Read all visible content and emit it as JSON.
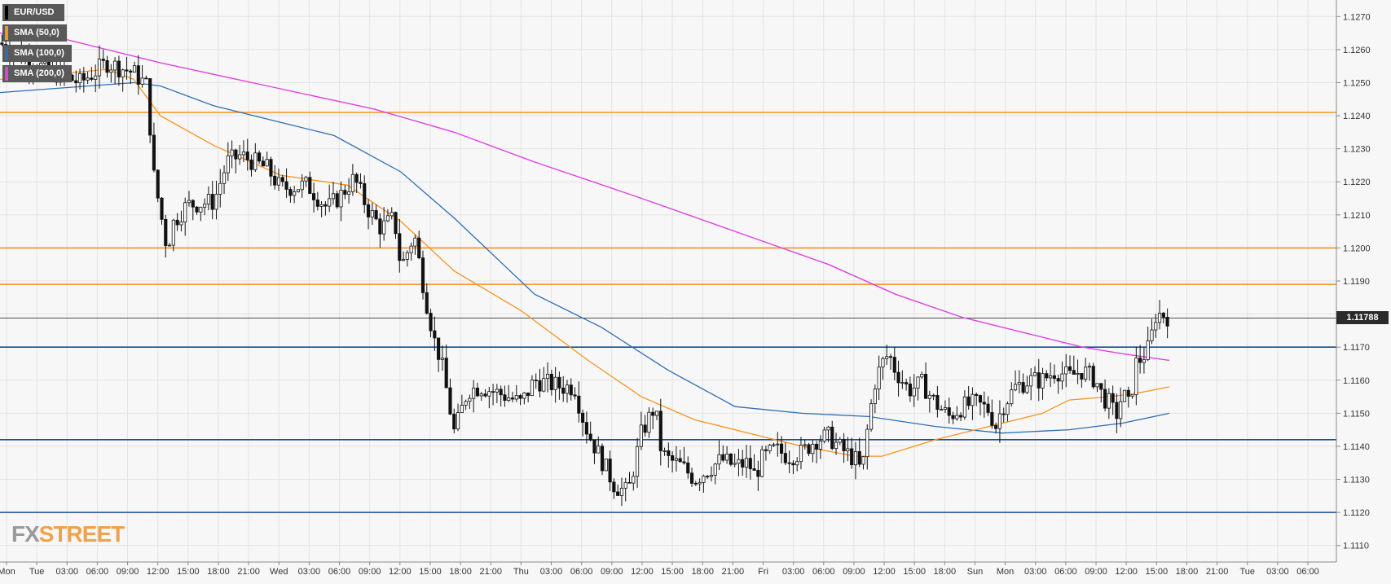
{
  "chart_data": {
    "type": "candlestick",
    "symbol": "EUR/USD",
    "ylim": [
      1.1105,
      1.1275
    ],
    "y_ticks": [
      "1.1270",
      "1.1260",
      "1.1250",
      "1.1240",
      "1.1230",
      "1.1220",
      "1.1210",
      "1.1200",
      "1.1190",
      "1.1180",
      "1.1170",
      "1.1160",
      "1.1150",
      "1.1140",
      "1.1130",
      "1.1120",
      "1.1110"
    ],
    "x_ticks": [
      "Mon",
      "Tue",
      "03:00",
      "06:00",
      "09:00",
      "12:00",
      "15:00",
      "18:00",
      "21:00",
      "Wed",
      "03:00",
      "06:00",
      "09:00",
      "12:00",
      "15:00",
      "18:00",
      "21:00",
      "Thu",
      "03:00",
      "06:00",
      "09:00",
      "12:00",
      "15:00",
      "18:00",
      "21:00",
      "Fri",
      "03:00",
      "06:00",
      "09:00",
      "12:00",
      "15:00",
      "18:00",
      "Sun",
      "Mon",
      "03:00",
      "06:00",
      "09:00",
      "12:00",
      "15:00",
      "18:00",
      "21:00",
      "Tue",
      "03:00",
      "06:00"
    ],
    "current_price": "1.11788",
    "legend": [
      {
        "label": "EUR/USD",
        "color": "#000000"
      },
      {
        "label": "SMA (50,0)",
        "color": "#f7931e"
      },
      {
        "label": "SMA (100,0)",
        "color": "#2e6db4"
      },
      {
        "label": "SMA (200,0)",
        "color": "#e040e0"
      }
    ],
    "horizontal_levels": [
      {
        "price": 1.1241,
        "color": "#f7931e"
      },
      {
        "price": 1.12,
        "color": "#f7931e"
      },
      {
        "price": 1.1189,
        "color": "#f7931e"
      },
      {
        "price": 1.117,
        "color": "#1a4a9c"
      },
      {
        "price": 1.1142,
        "color": "#1a4a9c"
      },
      {
        "price": 1.112,
        "color": "#1a4a9c"
      }
    ],
    "sma_50": [
      [
        0,
        1.1251
      ],
      [
        0.08,
        1.1254
      ],
      [
        0.1,
        1.1251
      ],
      [
        0.12,
        1.124
      ],
      [
        0.16,
        1.1231
      ],
      [
        0.21,
        1.1222
      ],
      [
        0.26,
        1.1219
      ],
      [
        0.3,
        1.1208
      ],
      [
        0.34,
        1.1193
      ],
      [
        0.39,
        1.1181
      ],
      [
        0.44,
        1.1166
      ],
      [
        0.48,
        1.1155
      ],
      [
        0.52,
        1.1148
      ],
      [
        0.56,
        1.1144
      ],
      [
        0.6,
        1.114
      ],
      [
        0.64,
        1.1137
      ],
      [
        0.66,
        1.1137
      ],
      [
        0.7,
        1.1142
      ],
      [
        0.74,
        1.1146
      ],
      [
        0.78,
        1.115
      ],
      [
        0.8,
        1.1154
      ],
      [
        0.83,
        1.1155
      ],
      [
        0.85,
        1.1156
      ],
      [
        0.875,
        1.1158
      ]
    ],
    "sma_100": [
      [
        0,
        1.1247
      ],
      [
        0.1,
        1.125
      ],
      [
        0.12,
        1.1249
      ],
      [
        0.16,
        1.1243
      ],
      [
        0.21,
        1.1238
      ],
      [
        0.25,
        1.1234
      ],
      [
        0.3,
        1.1223
      ],
      [
        0.34,
        1.1209
      ],
      [
        0.4,
        1.1186
      ],
      [
        0.45,
        1.1176
      ],
      [
        0.5,
        1.1163
      ],
      [
        0.55,
        1.1152
      ],
      [
        0.6,
        1.115
      ],
      [
        0.65,
        1.1149
      ],
      [
        0.7,
        1.1146
      ],
      [
        0.75,
        1.1144
      ],
      [
        0.8,
        1.1145
      ],
      [
        0.84,
        1.1147
      ],
      [
        0.875,
        1.115
      ]
    ],
    "sma_200": [
      [
        0,
        1.1265
      ],
      [
        0.05,
        1.1263
      ],
      [
        0.12,
        1.1256
      ],
      [
        0.2,
        1.1249
      ],
      [
        0.28,
        1.1242
      ],
      [
        0.34,
        1.1235
      ],
      [
        0.4,
        1.1226
      ],
      [
        0.48,
        1.1215
      ],
      [
        0.55,
        1.1205
      ],
      [
        0.62,
        1.1195
      ],
      [
        0.67,
        1.1186
      ],
      [
        0.72,
        1.1179
      ],
      [
        0.77,
        1.1174
      ],
      [
        0.81,
        1.117
      ],
      [
        0.84,
        1.1168
      ],
      [
        0.875,
        1.1166
      ]
    ],
    "price_path": [
      [
        0,
        1.1262
      ],
      [
        0.02,
        1.1257
      ],
      [
        0.04,
        1.1253
      ],
      [
        0.06,
        1.125
      ],
      [
        0.08,
        1.1256
      ],
      [
        0.1,
        1.1253
      ],
      [
        0.11,
        1.1249
      ],
      [
        0.115,
        1.1222
      ],
      [
        0.125,
        1.12
      ],
      [
        0.13,
        1.1208
      ],
      [
        0.14,
        1.1213
      ],
      [
        0.16,
        1.1214
      ],
      [
        0.17,
        1.1226
      ],
      [
        0.18,
        1.1228
      ],
      [
        0.2,
        1.1224
      ],
      [
        0.21,
        1.1218
      ],
      [
        0.23,
        1.1219
      ],
      [
        0.245,
        1.1212
      ],
      [
        0.255,
        1.1216
      ],
      [
        0.265,
        1.1221
      ],
      [
        0.275,
        1.1212
      ],
      [
        0.285,
        1.1206
      ],
      [
        0.295,
        1.1209
      ],
      [
        0.3,
        1.1194
      ],
      [
        0.31,
        1.1204
      ],
      [
        0.318,
        1.1186
      ],
      [
        0.325,
        1.1172
      ],
      [
        0.33,
        1.1166
      ],
      [
        0.34,
        1.1144
      ],
      [
        0.35,
        1.1157
      ],
      [
        0.36,
        1.1158
      ],
      [
        0.38,
        1.1155
      ],
      [
        0.39,
        1.1153
      ],
      [
        0.4,
        1.116
      ],
      [
        0.42,
        1.1158
      ],
      [
        0.43,
        1.1158
      ],
      [
        0.435,
        1.115
      ],
      [
        0.44,
        1.1144
      ],
      [
        0.45,
        1.1136
      ],
      [
        0.46,
        1.1128
      ],
      [
        0.47,
        1.1126
      ],
      [
        0.48,
        1.1144
      ],
      [
        0.49,
        1.1152
      ],
      [
        0.495,
        1.1138
      ],
      [
        0.5,
        1.1136
      ],
      [
        0.51,
        1.1134
      ],
      [
        0.52,
        1.113
      ],
      [
        0.53,
        1.1133
      ],
      [
        0.54,
        1.1136
      ],
      [
        0.55,
        1.1134
      ],
      [
        0.56,
        1.1135
      ],
      [
        0.565,
        1.1131
      ],
      [
        0.57,
        1.1136
      ],
      [
        0.58,
        1.1139
      ],
      [
        0.59,
        1.1137
      ],
      [
        0.6,
        1.1138
      ],
      [
        0.61,
        1.1142
      ],
      [
        0.62,
        1.1143
      ],
      [
        0.63,
        1.1139
      ],
      [
        0.64,
        1.1136
      ],
      [
        0.645,
        1.1132
      ],
      [
        0.65,
        1.1148
      ],
      [
        0.655,
        1.116
      ],
      [
        0.66,
        1.1165
      ],
      [
        0.665,
        1.1168
      ],
      [
        0.67,
        1.1163
      ],
      [
        0.68,
        1.1157
      ],
      [
        0.69,
        1.1159
      ],
      [
        0.7,
        1.1153
      ],
      [
        0.71,
        1.1149
      ],
      [
        0.72,
        1.1152
      ],
      [
        0.73,
        1.1153
      ],
      [
        0.74,
        1.1151
      ],
      [
        0.745,
        1.1146
      ],
      [
        0.75,
        1.1152
      ],
      [
        0.76,
        1.1158
      ],
      [
        0.77,
        1.116
      ],
      [
        0.78,
        1.116
      ],
      [
        0.79,
        1.1163
      ],
      [
        0.8,
        1.1161
      ],
      [
        0.81,
        1.1163
      ],
      [
        0.82,
        1.116
      ],
      [
        0.825,
        1.1155
      ],
      [
        0.83,
        1.1153
      ],
      [
        0.835,
        1.1149
      ],
      [
        0.84,
        1.1156
      ],
      [
        0.845,
        1.1152
      ],
      [
        0.85,
        1.1165
      ],
      [
        0.855,
        1.1167
      ],
      [
        0.86,
        1.117
      ],
      [
        0.865,
        1.118
      ],
      [
        0.87,
        1.118
      ],
      [
        0.875,
        1.1179
      ]
    ]
  }
}
